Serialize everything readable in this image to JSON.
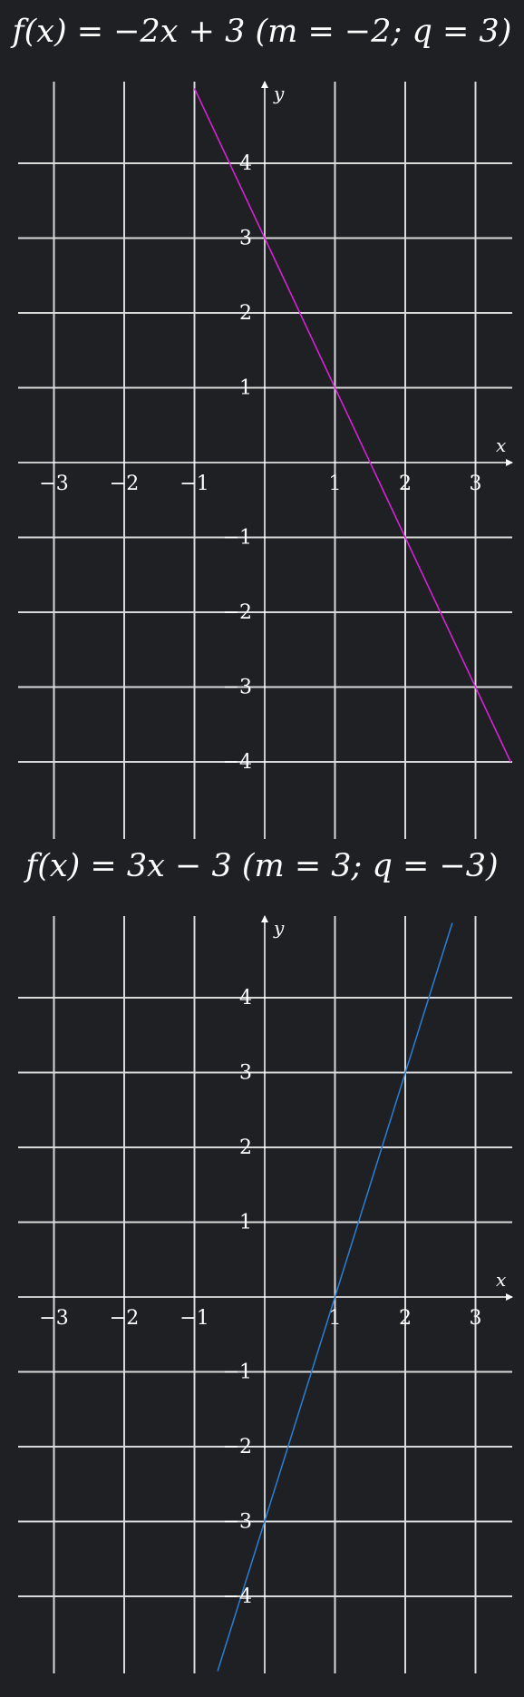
{
  "background": "#1f2024",
  "grid_color": "#d9d9d9",
  "axis_color": "#ffffff",
  "chart_data": [
    {
      "type": "line",
      "title": "f(x) = −2x + 3 (m = −2; q = 3)",
      "xlabel": "x",
      "ylabel": "y",
      "xlim": [
        -3.5,
        3.5
      ],
      "ylim": [
        -5,
        5
      ],
      "xticks": [
        -3,
        -2,
        -1,
        1,
        2,
        3
      ],
      "xtick_labels": [
        "−3",
        "−2",
        "−1",
        "1",
        "2",
        "3"
      ],
      "yticks": [
        4,
        3,
        2,
        1,
        -1,
        -2,
        -3,
        -4
      ],
      "ytick_labels": [
        "4",
        "3",
        "2",
        "1",
        "−1",
        "−2",
        "−3",
        "−4"
      ],
      "grid": true,
      "series": [
        {
          "slope": -2,
          "intercept": 3,
          "color": "#e020e0",
          "x": [
            -1,
            3.5
          ],
          "y": [
            5,
            -4
          ]
        }
      ]
    },
    {
      "type": "line",
      "title": "f(x) = 3x − 3 (m = 3; q = −3)",
      "xlabel": "x",
      "ylabel": "y",
      "xlim": [
        -3.5,
        3.5
      ],
      "ylim": [
        -5,
        5
      ],
      "xticks": [
        -3,
        -2,
        -1,
        1,
        2,
        3
      ],
      "xtick_labels": [
        "−3",
        "−2",
        "−1",
        "1",
        "2",
        "3"
      ],
      "yticks": [
        4,
        3,
        2,
        1,
        -1,
        -2,
        -3,
        -4
      ],
      "ytick_labels": [
        "4",
        "3",
        "2",
        "1",
        "−1",
        "−2",
        "−3",
        "−4"
      ],
      "grid": true,
      "series": [
        {
          "slope": 3,
          "intercept": -3,
          "color": "#2a7fd4",
          "x": [
            -0.67,
            2.67
          ],
          "y": [
            -5,
            5
          ]
        }
      ]
    }
  ]
}
